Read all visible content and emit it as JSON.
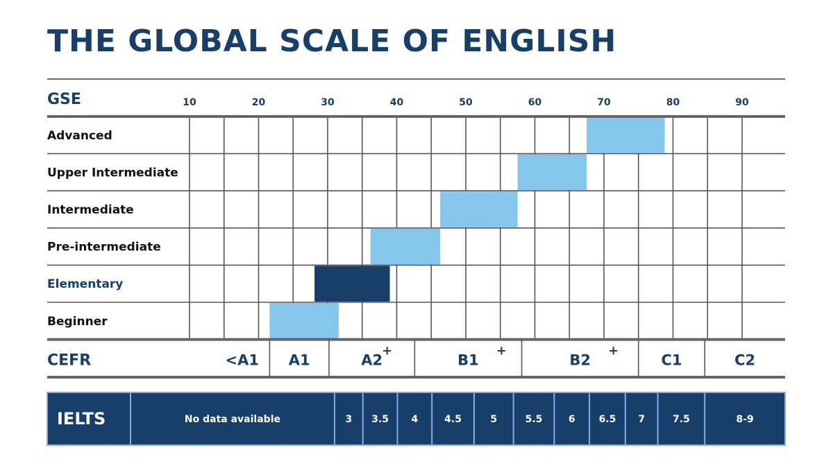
{
  "title": "THE GLOBAL SCALE OF ENGLISH",
  "colors": {
    "dark": "#173f69",
    "light": "#86c6ed",
    "grid": "#555555",
    "ielts_border": "#8fa6ef"
  },
  "chart_data": {
    "type": "bar",
    "xlabel": "GSE",
    "xlim": [
      10,
      96
    ],
    "xticks": [
      10,
      20,
      30,
      40,
      50,
      60,
      70,
      80,
      90
    ],
    "grid": true,
    "categories": [
      "Advanced",
      "Upper Intermediate",
      "Intermediate",
      "Pre-intermediate",
      "Elementary",
      "Beginner"
    ],
    "ranges": [
      {
        "category": "Advanced",
        "start": 67.5,
        "end": 78.8,
        "highlight": false
      },
      {
        "category": "Upper Intermediate",
        "start": 57.5,
        "end": 67.5,
        "highlight": false
      },
      {
        "category": "Intermediate",
        "start": 46.3,
        "end": 57.5,
        "highlight": false
      },
      {
        "category": "Pre-intermediate",
        "start": 36.2,
        "end": 46.3,
        "highlight": true
      },
      {
        "category": "Elementary",
        "start": 28.1,
        "end": 39.0,
        "highlight": true
      },
      {
        "category": "Beginner",
        "start": 21.6,
        "end": 31.6,
        "highlight": false
      }
    ],
    "highlight_category": "Elementary",
    "cefr": {
      "label": "CEFR",
      "bands": [
        {
          "label": "<A1",
          "start": 10,
          "end": 21.6
        },
        {
          "label": "A1",
          "start": 21.6,
          "end": 30.2
        },
        {
          "label": "A2",
          "plus": "+",
          "start": 30.2,
          "end": 42.6
        },
        {
          "label": "B1",
          "plus": "+",
          "start": 42.6,
          "end": 58.1
        },
        {
          "label": "B2",
          "plus": "+",
          "start": 58.1,
          "end": 75.0
        },
        {
          "label": "C1",
          "start": 75.0,
          "end": 84.6
        },
        {
          "label": "C2",
          "start": 84.6,
          "end": 96
        }
      ]
    },
    "ielts": {
      "label": "IELTS",
      "bands": [
        {
          "label": "No data available",
          "start": 10,
          "end": 31.0
        },
        {
          "label": "3",
          "start": 31.0,
          "end": 35.1
        },
        {
          "label": "3.5",
          "start": 35.1,
          "end": 40.1
        },
        {
          "label": "4",
          "start": 40.1,
          "end": 45.1
        },
        {
          "label": "4.5",
          "start": 45.1,
          "end": 51.2
        },
        {
          "label": "5",
          "start": 51.2,
          "end": 56.9
        },
        {
          "label": "5.5",
          "start": 56.9,
          "end": 62.8
        },
        {
          "label": "6",
          "start": 62.8,
          "end": 67.9
        },
        {
          "label": "6.5",
          "start": 67.9,
          "end": 73.1
        },
        {
          "label": "7",
          "start": 73.1,
          "end": 77.8
        },
        {
          "label": "7.5",
          "start": 77.8,
          "end": 84.6
        },
        {
          "label": "8-9",
          "start": 84.6,
          "end": 96
        }
      ]
    }
  }
}
